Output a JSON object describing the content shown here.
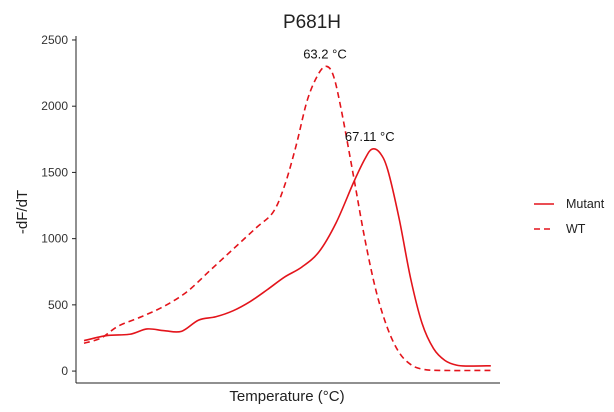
{
  "chart_data": {
    "type": "line",
    "title": "P681H",
    "xlabel": "Temperature (°C)",
    "ylabel": "-dF/dT",
    "ylim": [
      -90,
      2530
    ],
    "xlim": [
      41.3,
      78.3
    ],
    "x_ticks_visible": false,
    "y_ticks": [
      0,
      500,
      1000,
      1500,
      2000,
      2500
    ],
    "grid": false,
    "legend_position": "right",
    "series_color": "#e3141b",
    "series": [
      {
        "name": "Mutant",
        "line_style": "solid",
        "points": [
          [
            42,
            230
          ],
          [
            44,
            268
          ],
          [
            46,
            278
          ],
          [
            47.5,
            318
          ],
          [
            49,
            305
          ],
          [
            50.5,
            300
          ],
          [
            52,
            385
          ],
          [
            53.5,
            410
          ],
          [
            55,
            455
          ],
          [
            56.5,
            525
          ],
          [
            58,
            615
          ],
          [
            59.5,
            710
          ],
          [
            61,
            785
          ],
          [
            62.5,
            900
          ],
          [
            64,
            1120
          ],
          [
            65.5,
            1420
          ],
          [
            66.5,
            1600
          ],
          [
            67.11,
            1675
          ],
          [
            67.8,
            1650
          ],
          [
            68.5,
            1520
          ],
          [
            69.5,
            1150
          ],
          [
            70.5,
            700
          ],
          [
            71.5,
            360
          ],
          [
            72.5,
            170
          ],
          [
            73.5,
            80
          ],
          [
            74.5,
            45
          ],
          [
            75.5,
            38
          ],
          [
            77.5,
            40
          ]
        ]
      },
      {
        "name": "WT",
        "line_style": "dashed",
        "points": [
          [
            42,
            210
          ],
          [
            43.5,
            250
          ],
          [
            45,
            340
          ],
          [
            47,
            410
          ],
          [
            49,
            490
          ],
          [
            51,
            600
          ],
          [
            53,
            760
          ],
          [
            55,
            920
          ],
          [
            57,
            1080
          ],
          [
            58.5,
            1200
          ],
          [
            59.5,
            1400
          ],
          [
            60.5,
            1700
          ],
          [
            61.5,
            2050
          ],
          [
            62.5,
            2250
          ],
          [
            63.2,
            2300
          ],
          [
            63.8,
            2220
          ],
          [
            64.5,
            1950
          ],
          [
            65.5,
            1480
          ],
          [
            66.5,
            1000
          ],
          [
            67.5,
            600
          ],
          [
            68.5,
            320
          ],
          [
            69.5,
            140
          ],
          [
            70.5,
            50
          ],
          [
            71.5,
            15
          ],
          [
            73,
            5
          ],
          [
            77.5,
            5
          ]
        ]
      }
    ],
    "annotations": [
      {
        "text": "63.2 °C",
        "x": 63.2,
        "y": 2300
      },
      {
        "text": "67.11 °C",
        "x": 67.11,
        "y": 1675
      }
    ]
  }
}
